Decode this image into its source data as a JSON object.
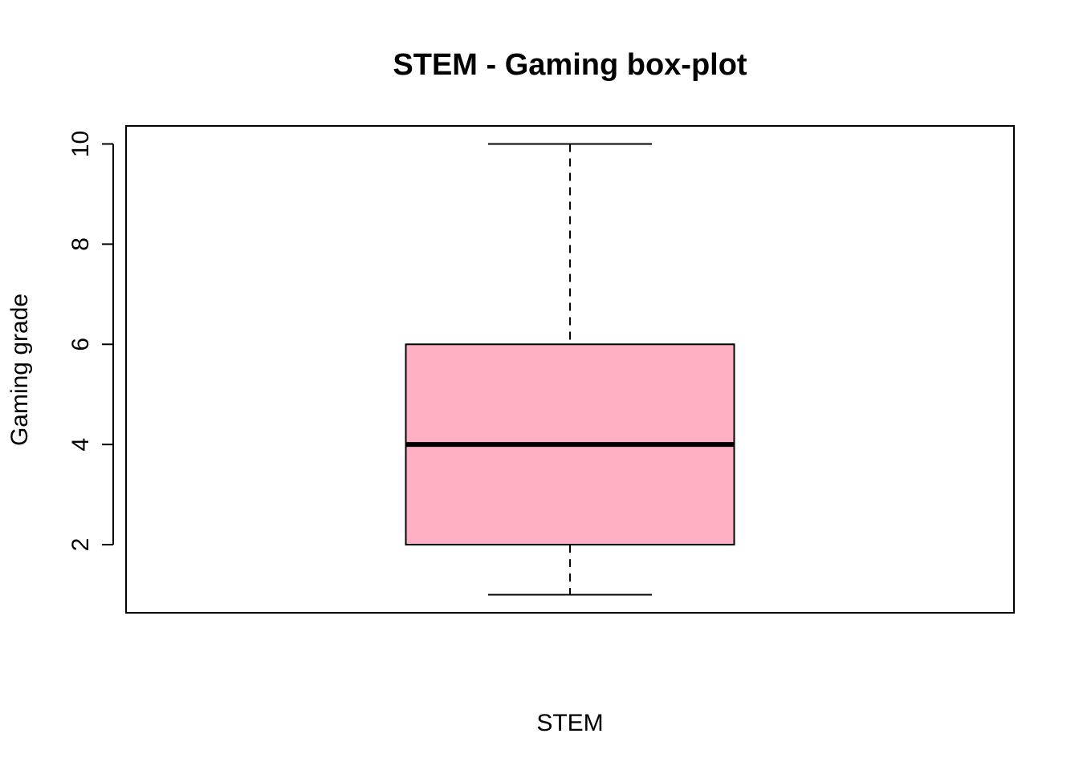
{
  "chart_data": {
    "type": "box",
    "title": "STEM - Gaming box-plot",
    "xlabel": "STEM",
    "ylabel": "Gaming grade",
    "ylim": [
      0.64,
      10.36
    ],
    "yticks": [
      2,
      4,
      6,
      8,
      10
    ],
    "ytick_labels": [
      "2",
      "4",
      "6",
      "8",
      "10"
    ],
    "grid": false,
    "legend": "none",
    "box": {
      "whisker_low": 1,
      "q1": 2,
      "median": 4,
      "q3": 6,
      "whisker_high": 10,
      "fill": "#FFB0C2",
      "stroke": "#000000"
    }
  }
}
